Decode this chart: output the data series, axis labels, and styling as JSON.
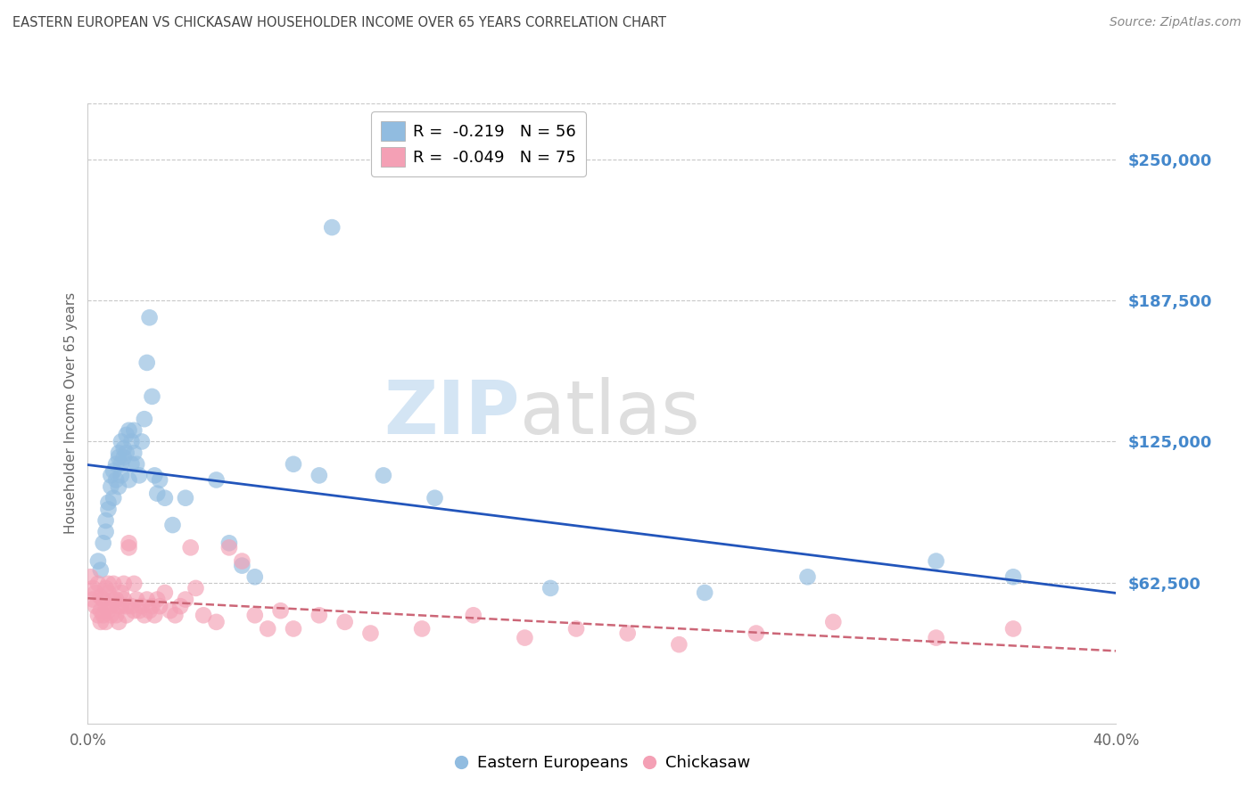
{
  "title": "EASTERN EUROPEAN VS CHICKASAW HOUSEHOLDER INCOME OVER 65 YEARS CORRELATION CHART",
  "source": "Source: ZipAtlas.com",
  "ylabel": "Householder Income Over 65 years",
  "xlim": [
    0.0,
    0.4
  ],
  "ylim": [
    0,
    275000
  ],
  "yticks": [
    62500,
    125000,
    187500,
    250000
  ],
  "ytick_labels": [
    "$62,500",
    "$125,000",
    "$187,500",
    "$250,000"
  ],
  "watermark_zip": "ZIP",
  "watermark_atlas": "atlas",
  "blue_legend_r": "R =  -0.219",
  "blue_legend_n": "N = 56",
  "pink_legend_r": "R =  -0.049",
  "pink_legend_n": "N = 75",
  "legend_label_blue": "Eastern Europeans",
  "legend_label_pink": "Chickasaw",
  "blue_color": "#91bce0",
  "pink_color": "#f4a0b5",
  "line_blue": "#2255bb",
  "line_pink": "#cc6677",
  "background": "#ffffff",
  "grid_color": "#c8c8c8",
  "title_color": "#444444",
  "ytick_color": "#4488cc",
  "xtick_color": "#666666",
  "blue_scatter_x": [
    0.004,
    0.005,
    0.006,
    0.007,
    0.007,
    0.008,
    0.008,
    0.009,
    0.009,
    0.01,
    0.01,
    0.011,
    0.011,
    0.012,
    0.012,
    0.012,
    0.013,
    0.013,
    0.013,
    0.014,
    0.014,
    0.015,
    0.015,
    0.016,
    0.016,
    0.017,
    0.017,
    0.018,
    0.018,
    0.019,
    0.02,
    0.021,
    0.022,
    0.023,
    0.024,
    0.025,
    0.026,
    0.027,
    0.028,
    0.03,
    0.033,
    0.038,
    0.05,
    0.055,
    0.06,
    0.065,
    0.08,
    0.09,
    0.095,
    0.115,
    0.135,
    0.18,
    0.24,
    0.28,
    0.33,
    0.36
  ],
  "blue_scatter_y": [
    72000,
    68000,
    80000,
    85000,
    90000,
    95000,
    98000,
    105000,
    110000,
    100000,
    112000,
    108000,
    115000,
    118000,
    105000,
    120000,
    115000,
    110000,
    125000,
    118000,
    122000,
    128000,
    120000,
    130000,
    108000,
    115000,
    125000,
    120000,
    130000,
    115000,
    110000,
    125000,
    135000,
    160000,
    180000,
    145000,
    110000,
    102000,
    108000,
    100000,
    88000,
    100000,
    108000,
    80000,
    70000,
    65000,
    115000,
    110000,
    220000,
    110000,
    100000,
    60000,
    58000,
    65000,
    72000,
    65000
  ],
  "pink_scatter_x": [
    0.001,
    0.002,
    0.002,
    0.003,
    0.003,
    0.004,
    0.004,
    0.005,
    0.005,
    0.005,
    0.006,
    0.006,
    0.007,
    0.007,
    0.007,
    0.008,
    0.008,
    0.008,
    0.009,
    0.009,
    0.01,
    0.01,
    0.011,
    0.011,
    0.012,
    0.012,
    0.013,
    0.013,
    0.014,
    0.014,
    0.015,
    0.015,
    0.016,
    0.016,
    0.017,
    0.018,
    0.018,
    0.019,
    0.02,
    0.021,
    0.022,
    0.023,
    0.024,
    0.025,
    0.026,
    0.027,
    0.028,
    0.03,
    0.032,
    0.034,
    0.036,
    0.038,
    0.04,
    0.042,
    0.045,
    0.05,
    0.055,
    0.06,
    0.065,
    0.07,
    0.075,
    0.08,
    0.09,
    0.1,
    0.11,
    0.13,
    0.15,
    0.17,
    0.19,
    0.21,
    0.23,
    0.26,
    0.29,
    0.33,
    0.36
  ],
  "pink_scatter_y": [
    65000,
    60000,
    55000,
    58000,
    52000,
    62000,
    48000,
    56000,
    50000,
    45000,
    55000,
    48000,
    60000,
    52000,
    45000,
    58000,
    50000,
    62000,
    52000,
    48000,
    55000,
    62000,
    48000,
    55000,
    52000,
    45000,
    58000,
    52000,
    62000,
    55000,
    48000,
    52000,
    78000,
    80000,
    52000,
    50000,
    62000,
    55000,
    50000,
    52000,
    48000,
    55000,
    50000,
    52000,
    48000,
    55000,
    52000,
    58000,
    50000,
    48000,
    52000,
    55000,
    78000,
    60000,
    48000,
    45000,
    78000,
    72000,
    48000,
    42000,
    50000,
    42000,
    48000,
    45000,
    40000,
    42000,
    48000,
    38000,
    42000,
    40000,
    35000,
    40000,
    45000,
    38000,
    42000
  ]
}
